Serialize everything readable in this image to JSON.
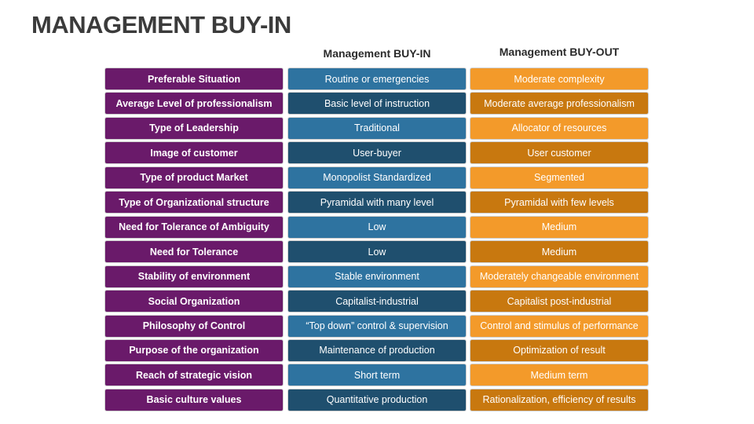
{
  "header": {
    "title": "MANAGEMENT BUY-IN"
  },
  "table": {
    "columns": [
      "Management BUY-IN",
      "Management BUY-OUT"
    ],
    "rows": [
      [
        "Preferable Situation",
        "Routine or emergencies",
        "Moderate complexity"
      ],
      [
        "Average Level of professionalism",
        "Basic level of instruction",
        "Moderate average professionalism"
      ],
      [
        "Type of Leadership",
        "Traditional",
        "Allocator of resources"
      ],
      [
        "Image of customer",
        "User-buyer",
        "User customer"
      ],
      [
        "Type of product Market",
        "Monopolist Standardized",
        "Segmented"
      ],
      [
        "Type of Organizational structure",
        "Pyramidal with many level",
        "Pyramidal with few levels"
      ],
      [
        "Need for Tolerance of Ambiguity",
        "Low",
        "Medium"
      ],
      [
        "Need for Tolerance",
        "Low",
        "Medium"
      ],
      [
        "Stability of environment",
        "Stable environment",
        "Moderately changeable environment"
      ],
      [
        "Social Organization",
        "Capitalist-industrial",
        "Capitalist post-industrial"
      ],
      [
        "Philosophy of Control",
        "“Top down” control & supervision",
        "Control and stimulus of performance"
      ],
      [
        "Purpose of the organization",
        "Maintenance of production",
        "Optimization of result"
      ],
      [
        "Reach of strategic vision",
        "Short term",
        "Medium term"
      ],
      [
        "Basic culture values",
        "Quantitative production",
        "Rationalization, efficiency of results"
      ]
    ]
  }
}
